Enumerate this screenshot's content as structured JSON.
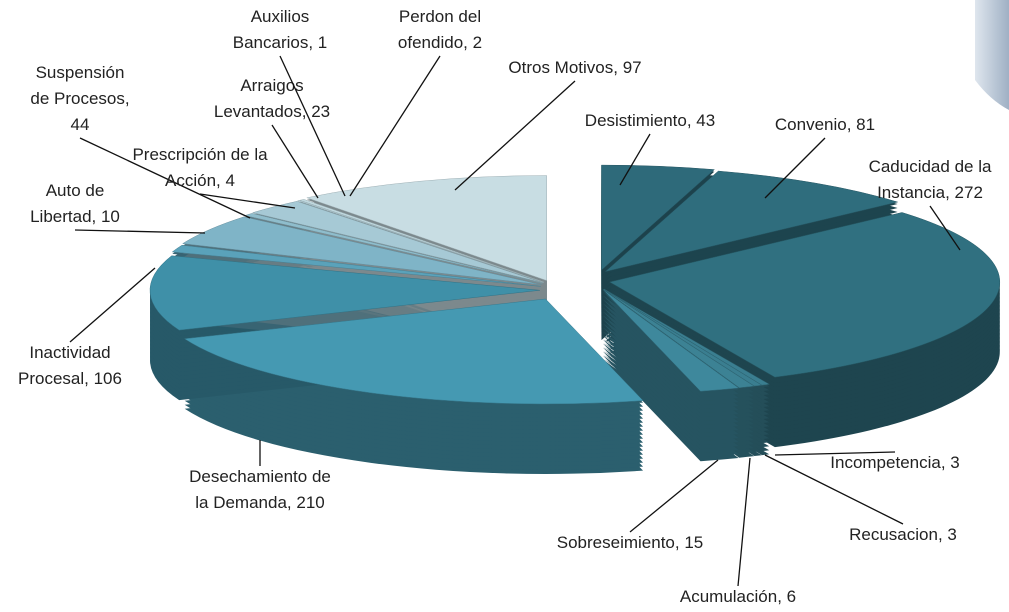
{
  "chart_data": {
    "type": "pie3d",
    "labels": [
      "Desistimiento, 43",
      "Convenio, 81",
      "Caducidad de la\nInstancia, 272",
      "Incompetencia, 3",
      "Recusacion, 3",
      "Acumulación, 6",
      "Sobreseimiento, 15",
      "Desechamiento de\nla Demanda,  210",
      "Inactividad\nProcesal, 106",
      "Auto de\nLibertad, 10",
      "Suspensión\nde Procesos,\n44",
      "Prescripción de la\nAcción, 4",
      "Arraigos\nLevantados, 23",
      "Auxilios\nBancarios, 1",
      "Perdon del\nofendido, 2",
      "Otros Motivos,  97"
    ],
    "values": [
      43,
      81,
      272,
      3,
      3,
      6,
      15,
      210,
      106,
      10,
      44,
      4,
      23,
      1,
      2,
      97
    ],
    "colors": [
      "#2e6a7a",
      "#2f6d7d",
      "#307080",
      "#3a7e90",
      "#3a7e90",
      "#3c8294",
      "#3e889c",
      "#4599b2",
      "#3f90a8",
      "#5aa2ba",
      "#7fb4c7",
      "#8fbdcc",
      "#a6c9d5",
      "#b8d4dd",
      "#c0d9e0",
      "#c8dde3"
    ]
  }
}
